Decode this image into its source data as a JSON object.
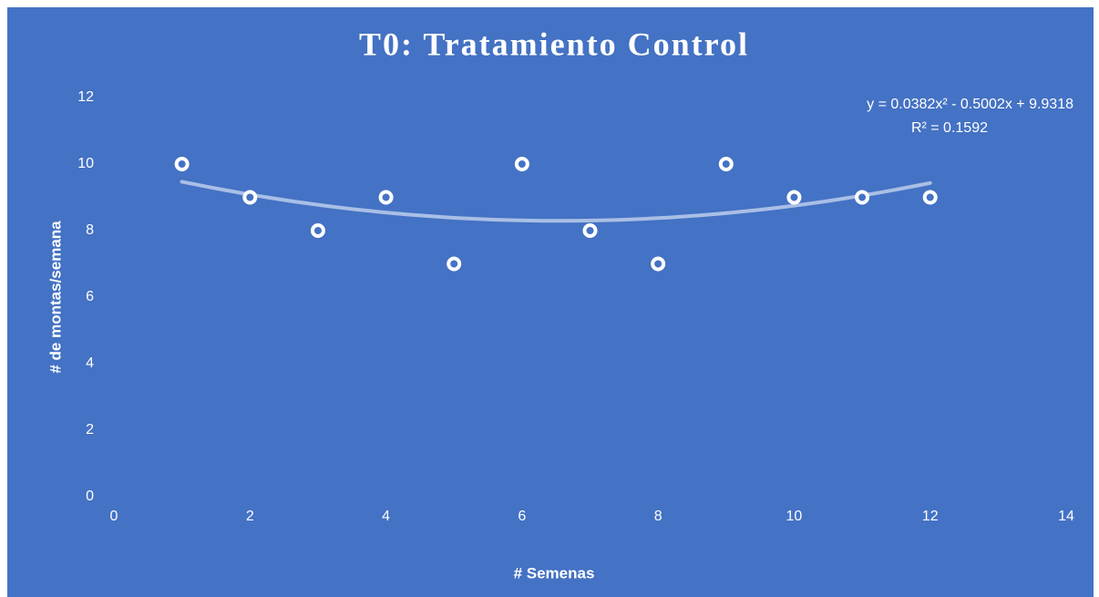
{
  "chart_data": {
    "type": "scatter",
    "title": "T0: Tratamiento Control",
    "x_label": "# Semenas",
    "y_label": "# de montas/semana",
    "x": [
      1,
      2,
      3,
      4,
      5,
      6,
      7,
      8,
      9,
      10,
      11,
      12
    ],
    "series": [
      {
        "color": "#ffffff",
        "values": [
          10,
          9,
          8,
          9,
          7,
          10,
          8,
          7,
          10,
          9,
          9,
          9
        ]
      }
    ],
    "trendline": {
      "type": "polynomial",
      "equation": "y = 0.0382x² - 0.5002x + 9.9318",
      "r_squared": "R² = 0.1592"
    },
    "xlim": [
      0,
      14
    ],
    "xticks": [
      0,
      2,
      4,
      6,
      8,
      10,
      12,
      14
    ],
    "ylim": [
      0,
      12
    ],
    "yticks": [
      0,
      2,
      4,
      6,
      8,
      10,
      12
    ],
    "grid": false
  }
}
